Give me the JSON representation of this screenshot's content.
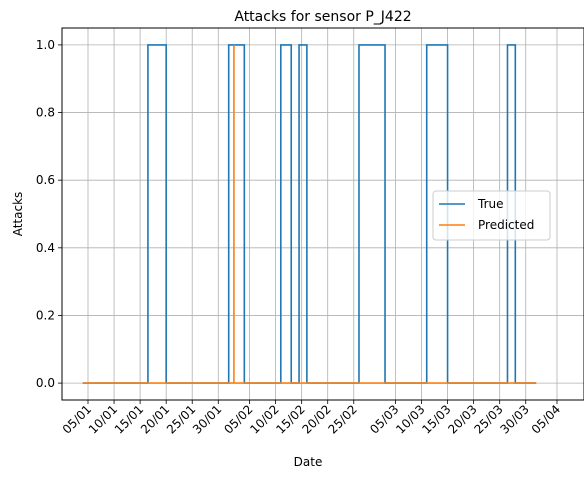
{
  "chart_data": {
    "type": "line",
    "title": "Attacks for sensor P_J422",
    "xlabel": "Date",
    "ylabel": "Attacks",
    "xlim": [
      "2017-01-01",
      "2017-04-06"
    ],
    "ylim": [
      -0.05,
      1.05
    ],
    "x_tick_labels": [
      "05/01",
      "10/01",
      "15/01",
      "20/01",
      "25/01",
      "30/01",
      "05/02",
      "10/02",
      "15/02",
      "20/02",
      "25/02",
      "05/03",
      "10/03",
      "15/03",
      "20/03",
      "25/03",
      "30/03",
      "05/04"
    ],
    "x_tick_dates": [
      "2017-01-05",
      "2017-01-10",
      "2017-01-15",
      "2017-01-20",
      "2017-01-25",
      "2017-01-30",
      "2017-02-05",
      "2017-02-10",
      "2017-02-15",
      "2017-02-20",
      "2017-02-25",
      "2017-03-05",
      "2017-03-10",
      "2017-03-15",
      "2017-03-20",
      "2017-03-25",
      "2017-03-30",
      "2017-04-05"
    ],
    "y_ticks": [
      0.0,
      0.2,
      0.4,
      0.6,
      0.8,
      1.0
    ],
    "y_tick_labels": [
      "0.0",
      "0.2",
      "0.4",
      "0.6",
      "0.8",
      "1.0"
    ],
    "grid": true,
    "legend_position": "center-right",
    "series": [
      {
        "name": "True",
        "color": "#1f77b4",
        "x": [
          "2017-01-04",
          "2017-01-16 12:00",
          "2017-01-16 12:00",
          "2017-01-20",
          "2017-01-20",
          "2017-02-01",
          "2017-02-01",
          "2017-02-04",
          "2017-02-04",
          "2017-02-11",
          "2017-02-11",
          "2017-02-13",
          "2017-02-13",
          "2017-02-14 12:00",
          "2017-02-14 12:00",
          "2017-02-16",
          "2017-02-16",
          "2017-02-26",
          "2017-02-26",
          "2017-03-03",
          "2017-03-03",
          "2017-03-11",
          "2017-03-11",
          "2017-03-15",
          "2017-03-15",
          "2017-03-26 12:00",
          "2017-03-26 12:00",
          "2017-03-28",
          "2017-03-28",
          "2017-04-01"
        ],
        "y": [
          0,
          0,
          1,
          1,
          0,
          0,
          1,
          1,
          0,
          0,
          1,
          1,
          0,
          0,
          1,
          1,
          0,
          0,
          1,
          1,
          0,
          0,
          1,
          1,
          0,
          0,
          1,
          1,
          0,
          0
        ]
      },
      {
        "name": "Predicted",
        "color": "#ff7f0e",
        "x": [
          "2017-01-04",
          "2017-02-02",
          "2017-02-02",
          "2017-02-02",
          "2017-02-02",
          "2017-04-01"
        ],
        "y": [
          0,
          0,
          1,
          1,
          0,
          0
        ]
      }
    ]
  }
}
